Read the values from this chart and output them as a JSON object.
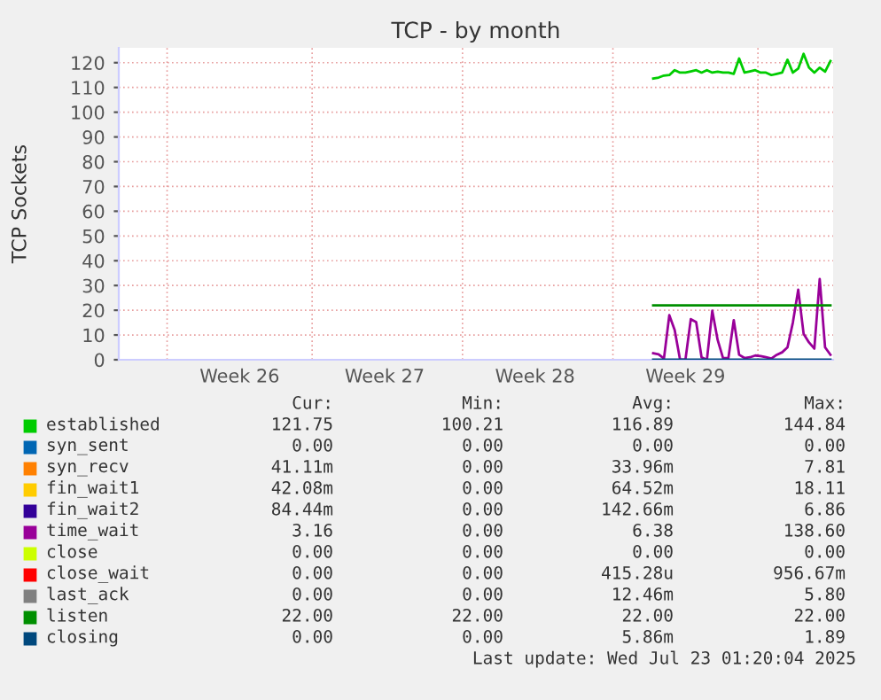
{
  "chart_data": {
    "type": "line",
    "title": "TCP - by month",
    "ylabel": "TCP Sockets",
    "ylim": [
      0,
      126
    ],
    "categories": [
      null,
      null,
      null,
      null,
      null,
      null,
      null,
      null,
      null,
      null,
      null,
      null,
      null,
      null,
      null,
      null,
      null,
      null,
      null,
      null,
      null,
      null,
      "Week 26",
      null,
      null,
      null,
      null,
      null,
      null,
      null,
      null,
      null,
      null,
      null,
      null,
      null,
      null,
      null,
      null,
      null,
      null,
      null,
      null,
      null,
      null,
      null,
      null,
      null,
      null,
      "Week 27",
      null,
      null,
      null,
      null,
      null,
      null,
      null,
      null,
      null,
      null,
      null,
      null,
      null,
      null,
      null,
      null,
      null,
      null,
      null,
      null,
      null,
      null,
      null,
      null,
      null,
      null,
      null,
      "Week 28",
      null,
      null,
      null,
      null,
      null,
      null,
      null,
      null,
      null,
      null,
      null,
      null,
      null,
      null,
      null,
      null,
      null,
      null,
      null,
      null,
      null,
      null,
      null,
      null,
      null,
      null,
      null,
      "Week 29",
      null,
      null,
      null,
      null,
      null,
      null,
      null,
      null,
      null,
      null,
      null,
      null,
      null,
      null,
      null,
      null,
      null,
      null,
      null,
      null,
      null,
      null,
      null,
      null,
      null,
      null,
      null
    ],
    "yticks": [
      0,
      10,
      20,
      30,
      40,
      50,
      60,
      70,
      80,
      90,
      100,
      110,
      120
    ],
    "grid": true,
    "legend": "bottom",
    "line_style": "solid",
    "marker": "none",
    "series": [
      {
        "name": "established",
        "color": "#00cc00",
        "values": [
          null,
          null,
          null,
          null,
          null,
          null,
          null,
          null,
          null,
          null,
          null,
          null,
          null,
          null,
          null,
          null,
          null,
          null,
          null,
          null,
          null,
          null,
          null,
          null,
          null,
          null,
          null,
          null,
          null,
          null,
          null,
          null,
          null,
          null,
          null,
          null,
          null,
          null,
          null,
          null,
          null,
          null,
          null,
          null,
          null,
          null,
          null,
          null,
          null,
          null,
          null,
          null,
          null,
          null,
          null,
          null,
          null,
          null,
          null,
          null,
          null,
          null,
          null,
          null,
          null,
          null,
          null,
          null,
          null,
          null,
          null,
          null,
          null,
          null,
          null,
          null,
          null,
          null,
          null,
          null,
          null,
          null,
          null,
          null,
          null,
          null,
          null,
          null,
          null,
          null,
          null,
          null,
          null,
          null,
          null,
          null,
          null,
          null,
          null,
          113.6,
          114,
          114.8,
          115,
          117,
          116,
          116,
          116.5,
          117,
          116,
          117,
          116,
          116.4,
          116,
          116,
          115.5,
          121.7,
          116,
          116.5,
          117,
          116,
          116,
          115,
          115.5,
          116,
          121.2,
          116,
          117.6,
          123.6,
          118,
          116,
          118,
          116.4,
          120.7
        ]
      },
      {
        "name": "syn_sent",
        "color": "#0066b3",
        "values": [
          null,
          null,
          null,
          null,
          null,
          null,
          null,
          null,
          null,
          null,
          null,
          null,
          null,
          null,
          null,
          null,
          null,
          null,
          null,
          null,
          null,
          null,
          null,
          null,
          null,
          null,
          null,
          null,
          null,
          null,
          null,
          null,
          null,
          null,
          null,
          null,
          null,
          null,
          null,
          null,
          null,
          null,
          null,
          null,
          null,
          null,
          null,
          null,
          null,
          null,
          null,
          null,
          null,
          null,
          null,
          null,
          null,
          null,
          null,
          null,
          null,
          null,
          null,
          null,
          null,
          null,
          null,
          null,
          null,
          null,
          null,
          null,
          null,
          null,
          null,
          null,
          null,
          null,
          null,
          null,
          null,
          null,
          null,
          null,
          null,
          null,
          null,
          null,
          null,
          null,
          null,
          null,
          null,
          null,
          null,
          null,
          null,
          null,
          null,
          null,
          null,
          null,
          null,
          null,
          null,
          null,
          null,
          null,
          null,
          null,
          null,
          null,
          null,
          null,
          null,
          null,
          null,
          null,
          null,
          null,
          null,
          null,
          null,
          null,
          null,
          null,
          null,
          null,
          null,
          null,
          null,
          null,
          null
        ]
      },
      {
        "name": "syn_recv",
        "color": "#ff8000",
        "values": [
          null,
          null,
          null,
          null,
          null,
          null,
          null,
          null,
          null,
          null,
          null,
          null,
          null,
          null,
          null,
          null,
          null,
          null,
          null,
          null,
          null,
          null,
          null,
          null,
          null,
          null,
          null,
          null,
          null,
          null,
          null,
          null,
          null,
          null,
          null,
          null,
          null,
          null,
          null,
          null,
          null,
          null,
          null,
          null,
          null,
          null,
          null,
          null,
          null,
          null,
          null,
          null,
          null,
          null,
          null,
          null,
          null,
          null,
          null,
          null,
          null,
          null,
          null,
          null,
          null,
          null,
          null,
          null,
          null,
          null,
          null,
          null,
          null,
          null,
          null,
          null,
          null,
          null,
          null,
          null,
          null,
          null,
          null,
          null,
          null,
          null,
          null,
          null,
          null,
          null,
          null,
          null,
          null,
          null,
          null,
          null,
          null,
          null,
          null,
          null,
          null,
          null,
          null,
          null,
          null,
          null,
          null,
          null,
          null,
          null,
          null,
          null,
          null,
          null,
          null,
          null,
          null,
          null,
          null,
          null,
          null,
          null,
          null,
          null,
          null,
          null,
          null,
          null,
          null,
          null,
          null,
          null,
          null
        ]
      },
      {
        "name": "fin_wait1",
        "color": "#ffcc00",
        "values": [
          null,
          null,
          null,
          null,
          null,
          null,
          null,
          null,
          null,
          null,
          null,
          null,
          null,
          null,
          null,
          null,
          null,
          null,
          null,
          null,
          null,
          null,
          null,
          null,
          null,
          null,
          null,
          null,
          null,
          null,
          null,
          null,
          null,
          null,
          null,
          null,
          null,
          null,
          null,
          null,
          null,
          null,
          null,
          null,
          null,
          null,
          null,
          null,
          null,
          null,
          null,
          null,
          null,
          null,
          null,
          null,
          null,
          null,
          null,
          null,
          null,
          null,
          null,
          null,
          null,
          null,
          null,
          null,
          null,
          null,
          null,
          null,
          null,
          null,
          null,
          null,
          null,
          null,
          null,
          null,
          null,
          null,
          null,
          null,
          null,
          null,
          null,
          null,
          null,
          null,
          null,
          null,
          null,
          null,
          null,
          null,
          null,
          null,
          null,
          null,
          null,
          null,
          null,
          null,
          null,
          null,
          null,
          null,
          null,
          null,
          null,
          null,
          null,
          null,
          null,
          null,
          null,
          null,
          null,
          null,
          null,
          null,
          null,
          null,
          null,
          null,
          null,
          null,
          null,
          null,
          null,
          null,
          null
        ]
      },
      {
        "name": "fin_wait2",
        "color": "#330099",
        "values": [
          null,
          null,
          null,
          null,
          null,
          null,
          null,
          null,
          null,
          null,
          null,
          null,
          null,
          null,
          null,
          null,
          null,
          null,
          null,
          null,
          null,
          null,
          null,
          null,
          null,
          null,
          null,
          null,
          null,
          null,
          null,
          null,
          null,
          null,
          null,
          null,
          null,
          null,
          null,
          null,
          null,
          null,
          null,
          null,
          null,
          null,
          null,
          null,
          null,
          null,
          null,
          null,
          null,
          null,
          null,
          null,
          null,
          null,
          null,
          null,
          null,
          null,
          null,
          null,
          null,
          null,
          null,
          null,
          null,
          null,
          null,
          null,
          null,
          null,
          null,
          null,
          null,
          null,
          null,
          null,
          null,
          null,
          null,
          null,
          null,
          null,
          null,
          null,
          null,
          null,
          null,
          null,
          null,
          null,
          null,
          null,
          null,
          null,
          null,
          null,
          null,
          null,
          null,
          null,
          null,
          null,
          null,
          null,
          null,
          null,
          null,
          null,
          null,
          null,
          null,
          null,
          null,
          null,
          null,
          null,
          null,
          null,
          null,
          null,
          null,
          null,
          null,
          null,
          null,
          null,
          null,
          null,
          null
        ]
      },
      {
        "name": "time_wait",
        "color": "#990099",
        "values": [
          null,
          null,
          null,
          null,
          null,
          null,
          null,
          null,
          null,
          null,
          null,
          null,
          null,
          null,
          null,
          null,
          null,
          null,
          null,
          null,
          null,
          null,
          null,
          null,
          null,
          null,
          null,
          null,
          null,
          null,
          null,
          null,
          null,
          null,
          null,
          null,
          null,
          null,
          null,
          null,
          null,
          null,
          null,
          null,
          null,
          null,
          null,
          null,
          null,
          null,
          null,
          null,
          null,
          null,
          null,
          null,
          null,
          null,
          null,
          null,
          null,
          null,
          null,
          null,
          null,
          null,
          null,
          null,
          null,
          null,
          null,
          null,
          null,
          null,
          null,
          null,
          null,
          null,
          null,
          null,
          null,
          null,
          null,
          null,
          null,
          null,
          null,
          null,
          null,
          null,
          null,
          null,
          null,
          null,
          null,
          null,
          null,
          null,
          null,
          2.6,
          2.2,
          0.5,
          18,
          12,
          0,
          0,
          16.4,
          15.2,
          1,
          0,
          19.8,
          8,
          0.7,
          0.7,
          16,
          2,
          0.7,
          1,
          1.7,
          1.5,
          1,
          0.5,
          2,
          3,
          5,
          15,
          28.3,
          10.5,
          7,
          4.5,
          32.6,
          5,
          2
        ]
      },
      {
        "name": "close",
        "color": "#ccff00",
        "values": [
          null,
          null,
          null,
          null,
          null,
          null,
          null,
          null,
          null,
          null,
          null,
          null,
          null,
          null,
          null,
          null,
          null,
          null,
          null,
          null,
          null,
          null,
          null,
          null,
          null,
          null,
          null,
          null,
          null,
          null,
          null,
          null,
          null,
          null,
          null,
          null,
          null,
          null,
          null,
          null,
          null,
          null,
          null,
          null,
          null,
          null,
          null,
          null,
          null,
          null,
          null,
          null,
          null,
          null,
          null,
          null,
          null,
          null,
          null,
          null,
          null,
          null,
          null,
          null,
          null,
          null,
          null,
          null,
          null,
          null,
          null,
          null,
          null,
          null,
          null,
          null,
          null,
          null,
          null,
          null,
          null,
          null,
          null,
          null,
          null,
          null,
          null,
          null,
          null,
          null,
          null,
          null,
          null,
          null,
          null,
          null,
          null,
          null,
          null,
          null,
          null,
          null,
          null,
          null,
          null,
          null,
          null,
          null,
          null,
          null,
          null,
          null,
          null,
          null,
          null,
          null,
          null,
          null,
          null,
          null,
          null,
          null,
          null,
          null,
          null,
          null,
          null,
          null,
          null,
          null,
          null,
          null,
          null
        ]
      },
      {
        "name": "close_wait",
        "color": "#ff0000",
        "values": [
          null,
          null,
          null,
          null,
          null,
          null,
          null,
          null,
          null,
          null,
          null,
          null,
          null,
          null,
          null,
          null,
          null,
          null,
          null,
          null,
          null,
          null,
          null,
          null,
          null,
          null,
          null,
          null,
          null,
          null,
          null,
          null,
          null,
          null,
          null,
          null,
          null,
          null,
          null,
          null,
          null,
          null,
          null,
          null,
          null,
          null,
          null,
          null,
          null,
          null,
          null,
          null,
          null,
          null,
          null,
          null,
          null,
          null,
          null,
          null,
          null,
          null,
          null,
          null,
          null,
          null,
          null,
          null,
          null,
          null,
          null,
          null,
          null,
          null,
          null,
          null,
          null,
          null,
          null,
          null,
          null,
          null,
          null,
          null,
          null,
          null,
          null,
          null,
          null,
          null,
          null,
          null,
          null,
          null,
          null,
          null,
          null,
          null,
          null,
          null,
          null,
          null,
          null,
          null,
          null,
          null,
          null,
          null,
          null,
          null,
          null,
          null,
          null,
          null,
          null,
          null,
          null,
          null,
          null,
          null,
          null,
          null,
          null,
          null,
          null,
          null,
          null,
          null,
          null,
          null,
          null,
          null,
          null
        ]
      },
      {
        "name": "last_ack",
        "color": "#808080",
        "values": [
          null,
          null,
          null,
          null,
          null,
          null,
          null,
          null,
          null,
          null,
          null,
          null,
          null,
          null,
          null,
          null,
          null,
          null,
          null,
          null,
          null,
          null,
          null,
          null,
          null,
          null,
          null,
          null,
          null,
          null,
          null,
          null,
          null,
          null,
          null,
          null,
          null,
          null,
          null,
          null,
          null,
          null,
          null,
          null,
          null,
          null,
          null,
          null,
          null,
          null,
          null,
          null,
          null,
          null,
          null,
          null,
          null,
          null,
          null,
          null,
          null,
          null,
          null,
          null,
          null,
          null,
          null,
          null,
          null,
          null,
          null,
          null,
          null,
          null,
          null,
          null,
          null,
          null,
          null,
          null,
          null,
          null,
          null,
          null,
          null,
          null,
          null,
          null,
          null,
          null,
          null,
          null,
          null,
          null,
          null,
          null,
          null,
          null,
          null,
          null,
          null,
          null,
          null,
          null,
          null,
          null,
          null,
          null,
          null,
          null,
          null,
          null,
          null,
          null,
          null,
          null,
          null,
          null,
          null,
          null,
          null,
          null,
          null,
          null,
          null,
          null,
          null,
          null,
          null,
          null,
          null,
          null,
          null
        ]
      },
      {
        "name": "listen",
        "color": "#008f00",
        "values": [
          null,
          null,
          null,
          null,
          null,
          null,
          null,
          null,
          null,
          null,
          null,
          null,
          null,
          null,
          null,
          null,
          null,
          null,
          null,
          null,
          null,
          null,
          null,
          null,
          null,
          null,
          null,
          null,
          null,
          null,
          null,
          null,
          null,
          null,
          null,
          null,
          null,
          null,
          null,
          null,
          null,
          null,
          null,
          null,
          null,
          null,
          null,
          null,
          null,
          null,
          null,
          null,
          null,
          null,
          null,
          null,
          null,
          null,
          null,
          null,
          null,
          null,
          null,
          null,
          null,
          null,
          null,
          null,
          null,
          null,
          null,
          null,
          null,
          null,
          null,
          null,
          null,
          null,
          null,
          null,
          null,
          null,
          null,
          null,
          null,
          null,
          null,
          null,
          null,
          null,
          null,
          null,
          null,
          null,
          null,
          null,
          null,
          null,
          null,
          22,
          22,
          22,
          22,
          22,
          22,
          22,
          22,
          22,
          22,
          22,
          22,
          22,
          22,
          22,
          22,
          22,
          22,
          22,
          22,
          22,
          22,
          22,
          22,
          22,
          22,
          22,
          22,
          22,
          22,
          22,
          22,
          22,
          22
        ]
      },
      {
        "name": "closing",
        "color": "#00487d",
        "values": [
          null,
          null,
          null,
          null,
          null,
          null,
          null,
          null,
          null,
          null,
          null,
          null,
          null,
          null,
          null,
          null,
          null,
          null,
          null,
          null,
          null,
          null,
          null,
          null,
          null,
          null,
          null,
          null,
          null,
          null,
          null,
          null,
          null,
          null,
          null,
          null,
          null,
          null,
          null,
          null,
          null,
          null,
          null,
          null,
          null,
          null,
          null,
          null,
          null,
          null,
          null,
          null,
          null,
          null,
          null,
          null,
          null,
          null,
          null,
          null,
          null,
          null,
          null,
          null,
          null,
          null,
          null,
          null,
          null,
          null,
          null,
          null,
          null,
          null,
          null,
          null,
          null,
          null,
          null,
          null,
          null,
          null,
          null,
          null,
          null,
          null,
          null,
          null,
          null,
          null,
          null,
          null,
          null,
          null,
          null,
          null,
          null,
          null,
          null,
          0,
          0,
          0,
          0,
          0,
          0,
          0,
          0,
          0,
          0,
          0,
          0,
          0,
          0,
          0,
          0,
          0,
          0,
          0,
          0,
          0,
          0,
          0,
          0,
          0,
          0,
          0,
          0,
          0,
          0,
          0,
          0,
          0,
          0
        ]
      }
    ],
    "annotations": [
      "Cur:",
      "Min:",
      "Avg:",
      "Max:",
      "121.75",
      "100.21",
      "116.89",
      "144.84",
      "0.00",
      "0.00",
      "0.00",
      "0.00",
      "41.11m",
      "0.00",
      "33.96m",
      "7.81",
      "42.08m",
      "0.00",
      "64.52m",
      "18.11",
      "84.44m",
      "0.00",
      "142.66m",
      "6.86",
      "3.16",
      "0.00",
      "6.38",
      "138.60",
      "0.00",
      "0.00",
      "0.00",
      "0.00",
      "0.00",
      "0.00",
      "415.28u",
      "956.67m",
      "0.00",
      "0.00",
      "12.46m",
      "5.80",
      "22.00",
      "22.00",
      "22.00",
      "22.00",
      "0.00",
      "0.00",
      "5.86m",
      "1.89",
      "Last update: Wed Jul 23 01:20:04 2025"
    ]
  }
}
